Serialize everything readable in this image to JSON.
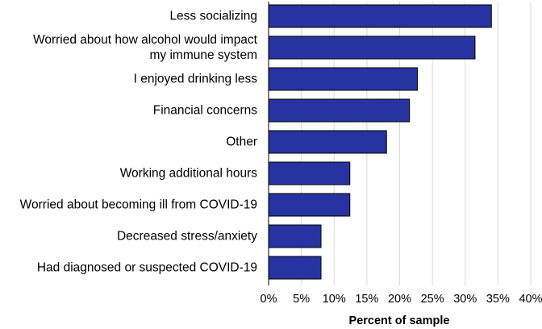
{
  "chart_data": {
    "type": "bar",
    "orientation": "horizontal",
    "categories": [
      "Less socializing",
      "Worried about how alcohol would impact my immune system",
      "I enjoyed drinking less",
      "Financial concerns",
      "Other",
      "Working additional hours",
      "Worried about becoming ill from COVID-19",
      "Decreased stress/anxiety",
      "Had diagnosed or suspected COVID-19"
    ],
    "category_lines": [
      [
        "Less socializing"
      ],
      [
        "Worried about how alcohol would impact",
        "my immune system"
      ],
      [
        "I enjoyed drinking less"
      ],
      [
        "Financial concerns"
      ],
      [
        "Other"
      ],
      [
        "Working additional hours"
      ],
      [
        "Worried about becoming ill from COVID-19"
      ],
      [
        "Decreased stress/anxiety"
      ],
      [
        "Had diagnosed or suspected COVID-19"
      ]
    ],
    "values": [
      34,
      31.5,
      22.7,
      21.5,
      18,
      12.4,
      12.4,
      8,
      8
    ],
    "xlim": [
      0,
      40
    ],
    "xticks": [
      0,
      5,
      10,
      15,
      20,
      25,
      30,
      35,
      40
    ],
    "xtick_labels": [
      "0%",
      "5%",
      "10%",
      "15%",
      "20%",
      "25%",
      "30%",
      "35%",
      "40%"
    ],
    "xlabel": "Percent of sample",
    "ylabel": "",
    "title": "",
    "grid": true,
    "legend": "none",
    "bar_color": "#2733a0",
    "bar_edge_color": "#000000"
  }
}
